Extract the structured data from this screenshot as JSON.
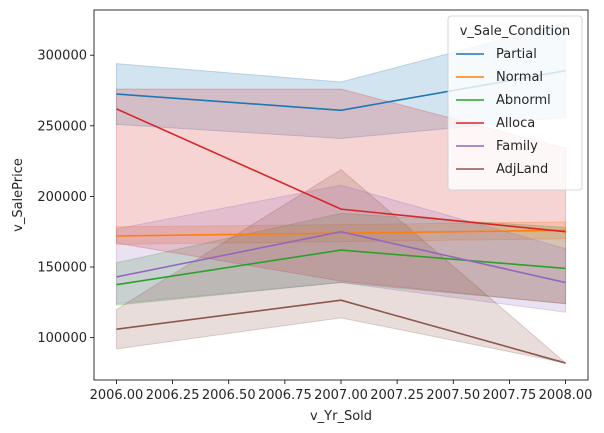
{
  "chart_data": {
    "type": "line",
    "title": "",
    "xlabel": "v_Yr_Sold",
    "ylabel": "v_SalePrice",
    "xlim": [
      2005.9,
      2008.1
    ],
    "ylim": [
      70000,
      332000
    ],
    "xticks": [
      2006.0,
      2006.25,
      2006.5,
      2006.75,
      2007.0,
      2007.25,
      2007.5,
      2007.75,
      2008.0
    ],
    "xtick_labels": [
      "2006.00",
      "2006.25",
      "2006.50",
      "2006.75",
      "2007.00",
      "2007.25",
      "2007.50",
      "2007.75",
      "2008.00"
    ],
    "yticks": [
      100000,
      150000,
      200000,
      250000,
      300000
    ],
    "ytick_labels": [
      "100000",
      "150000",
      "200000",
      "250000",
      "300000"
    ],
    "grid": false,
    "legend": {
      "title": "v_Sale_Condition",
      "placement": "top-right"
    },
    "x": [
      2006.0,
      2007.0,
      2008.0
    ],
    "series": [
      {
        "name": "Partial",
        "color": "#1f77b4",
        "values": [
          272500,
          261000,
          289000
        ],
        "ci_low": [
          251000,
          241000,
          256000
        ],
        "ci_high": [
          294000,
          281000,
          323000
        ]
      },
      {
        "name": "Normal",
        "color": "#ff7f0e",
        "values": [
          172000,
          174000,
          176000
        ],
        "ci_low": [
          166000,
          168000,
          170000
        ],
        "ci_high": [
          178500,
          180000,
          182000
        ]
      },
      {
        "name": "Abnorml",
        "color": "#2ca02c",
        "values": [
          137500,
          162000,
          149000
        ],
        "ci_low": [
          123000,
          139000,
          124000
        ],
        "ci_high": [
          153000,
          188000,
          178000
        ]
      },
      {
        "name": "Alloca",
        "color": "#d62728",
        "values": [
          262000,
          191000,
          175000
        ],
        "ci_low": [
          167000,
          140000,
          124000
        ],
        "ci_high": [
          276000,
          276000,
          234000
        ]
      },
      {
        "name": "Family",
        "color": "#9467bd",
        "values": [
          143000,
          175000,
          139000
        ],
        "ci_low": [
          124000,
          139000,
          118000
        ],
        "ci_high": [
          177000,
          208000,
          163000
        ]
      },
      {
        "name": "AdjLand",
        "color": "#8c564b",
        "values": [
          106000,
          126500,
          82000
        ],
        "ci_low": [
          92000,
          114000,
          82000
        ],
        "ci_high": [
          120000,
          219000,
          82000
        ]
      }
    ]
  }
}
